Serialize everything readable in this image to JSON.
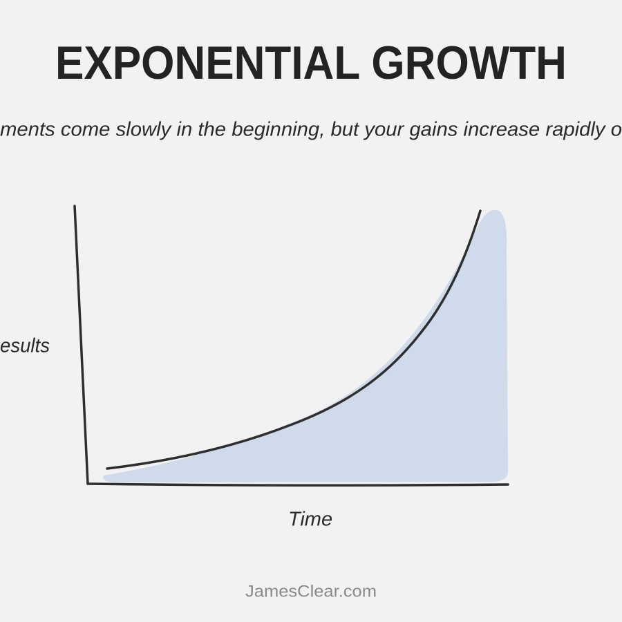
{
  "title": "EXPONENTIAL GROWTH",
  "subtitle": "ments come slowly in the beginning, but your gains increase rapidly o",
  "y_axis_label": "esults",
  "x_axis_label": "Time",
  "footer": "JamesClear.com"
}
